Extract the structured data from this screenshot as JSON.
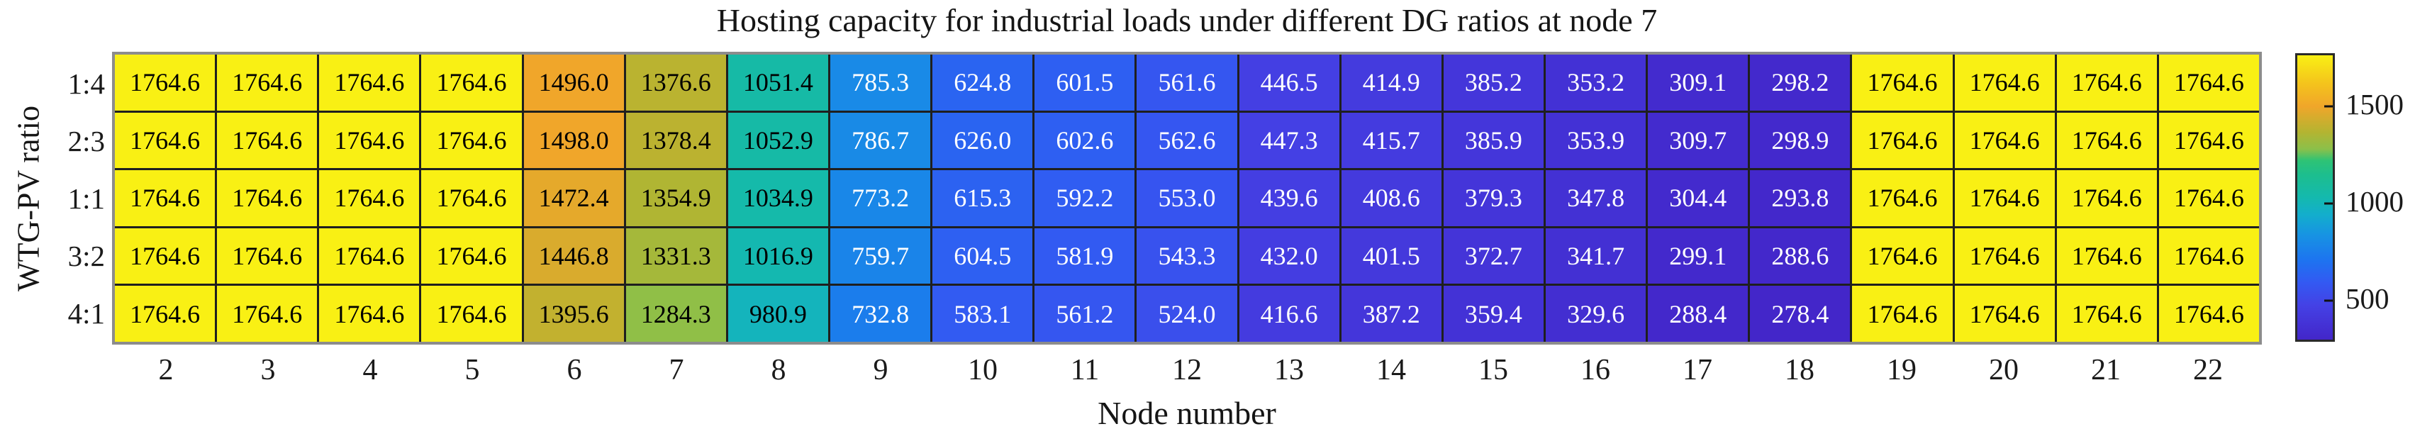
{
  "chart_data": {
    "type": "heatmap",
    "title": "Hosting capacity for industrial loads under different DG ratios at node 7",
    "xlabel": "Node number",
    "ylabel": "WTG-PV ratio",
    "x_categories": [
      "2",
      "3",
      "4",
      "5",
      "6",
      "7",
      "8",
      "9",
      "10",
      "11",
      "12",
      "13",
      "14",
      "15",
      "16",
      "17",
      "18",
      "19",
      "20",
      "21",
      "22"
    ],
    "y_categories": [
      "1:4",
      "2:3",
      "1:1",
      "3:2",
      "4:1"
    ],
    "rows": [
      {
        "label": "1:4",
        "values": [
          1764.6,
          1764.6,
          1764.6,
          1764.6,
          1496.0,
          1376.6,
          1051.4,
          785.3,
          624.8,
          601.5,
          561.6,
          446.5,
          414.9,
          385.2,
          353.2,
          309.1,
          298.2,
          1764.6,
          1764.6,
          1764.6,
          1764.6
        ]
      },
      {
        "label": "2:3",
        "values": [
          1764.6,
          1764.6,
          1764.6,
          1764.6,
          1498.0,
          1378.4,
          1052.9,
          786.7,
          626.0,
          602.6,
          562.6,
          447.3,
          415.7,
          385.9,
          353.9,
          309.7,
          298.9,
          1764.6,
          1764.6,
          1764.6,
          1764.6
        ]
      },
      {
        "label": "1:1",
        "values": [
          1764.6,
          1764.6,
          1764.6,
          1764.6,
          1472.4,
          1354.9,
          1034.9,
          773.2,
          615.3,
          592.2,
          553.0,
          439.6,
          408.6,
          379.3,
          347.8,
          304.4,
          293.8,
          1764.6,
          1764.6,
          1764.6,
          1764.6
        ]
      },
      {
        "label": "3:2",
        "values": [
          1764.6,
          1764.6,
          1764.6,
          1764.6,
          1446.8,
          1331.3,
          1016.9,
          759.7,
          604.5,
          581.9,
          543.3,
          432.0,
          401.5,
          372.7,
          341.7,
          299.1,
          288.6,
          1764.6,
          1764.6,
          1764.6,
          1764.6
        ]
      },
      {
        "label": "4:1",
        "values": [
          1764.6,
          1764.6,
          1764.6,
          1764.6,
          1395.6,
          1284.3,
          980.9,
          732.8,
          583.1,
          561.2,
          524.0,
          416.6,
          387.2,
          359.4,
          329.6,
          288.4,
          278.4,
          1764.6,
          1764.6,
          1764.6,
          1764.6
        ]
      }
    ],
    "vmin": 278.4,
    "vmax": 1764.6,
    "value_decimals": 1,
    "colorbar": {
      "position": "right",
      "ticks": [
        500,
        1000,
        1500
      ]
    },
    "colormap_stops": [
      [
        0.0,
        "#4326C9"
      ],
      [
        0.12,
        "#4441E5"
      ],
      [
        0.2,
        "#3359F2"
      ],
      [
        0.28,
        "#1D74F0"
      ],
      [
        0.37,
        "#1794E2"
      ],
      [
        0.44,
        "#13AECC"
      ],
      [
        0.5,
        "#14B9AE"
      ],
      [
        0.58,
        "#1DBE8E"
      ],
      [
        0.63,
        "#2EC375"
      ],
      [
        0.67,
        "#8BC04A"
      ],
      [
        0.73,
        "#B4B431"
      ],
      [
        0.82,
        "#F0A62A"
      ],
      [
        0.9,
        "#F4C31C"
      ],
      [
        1.0,
        "#F9F014"
      ]
    ],
    "text_colors": {
      "dark": "#000000",
      "light": "#ffffff",
      "light_text_below_value": 800
    },
    "grid_line_color": "#1f1f1f",
    "frame_color": "#8c8c8c",
    "legend": "none",
    "grid": "cell-borders"
  }
}
